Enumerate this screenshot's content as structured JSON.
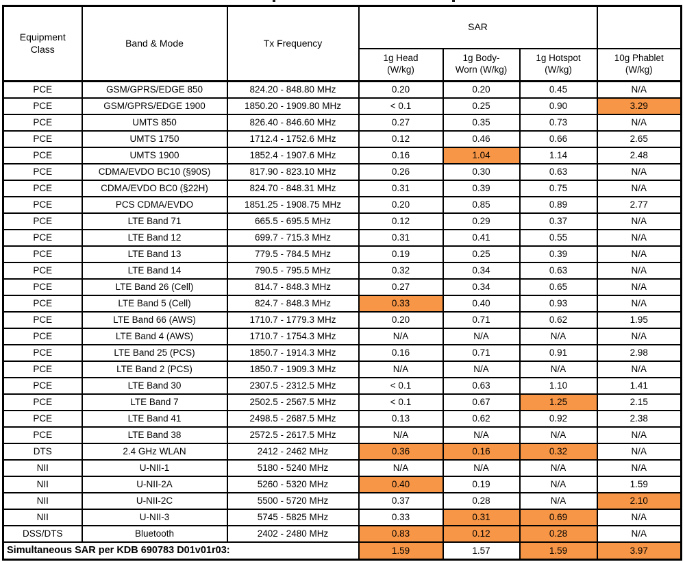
{
  "table": {
    "highlight_color": "#F79646",
    "headers": {
      "equipment_class": "Equipment\nClass",
      "band_mode": "Band & Mode",
      "tx_frequency": "Tx Frequency",
      "sar_group": "SAR",
      "sub_head": "1g Head\n(W/kg)",
      "sub_body_worn": "1g Body-\nWorn (W/kg)",
      "sub_hotspot": "1g Hotspot\n(W/kg)",
      "sub_phablet": "10g Phablet\n(W/kg)"
    },
    "rows": [
      {
        "equipment_class": "PCE",
        "band": "GSM/GPRS/EDGE 850",
        "frequency": "824.20 - 848.80 MHz",
        "values": [
          "0.20",
          "0.20",
          "0.45",
          "N/A"
        ],
        "highlight": [
          false,
          false,
          false,
          false
        ]
      },
      {
        "equipment_class": "PCE",
        "band": "GSM/GPRS/EDGE 1900",
        "frequency": "1850.20 - 1909.80 MHz",
        "values": [
          "< 0.1",
          "0.25",
          "0.90",
          "3.29"
        ],
        "highlight": [
          false,
          false,
          false,
          true
        ]
      },
      {
        "equipment_class": "PCE",
        "band": "UMTS 850",
        "frequency": "826.40 - 846.60 MHz",
        "values": [
          "0.27",
          "0.35",
          "0.73",
          "N/A"
        ],
        "highlight": [
          false,
          false,
          false,
          false
        ]
      },
      {
        "equipment_class": "PCE",
        "band": "UMTS 1750",
        "frequency": "1712.4 - 1752.6 MHz",
        "values": [
          "0.12",
          "0.46",
          "0.66",
          "2.65"
        ],
        "highlight": [
          false,
          false,
          false,
          false
        ]
      },
      {
        "equipment_class": "PCE",
        "band": "UMTS 1900",
        "frequency": "1852.4 - 1907.6 MHz",
        "values": [
          "0.16",
          "1.04",
          "1.14",
          "2.48"
        ],
        "highlight": [
          false,
          true,
          false,
          false
        ]
      },
      {
        "equipment_class": "PCE",
        "band": "CDMA/EVDO BC10 (§90S)",
        "frequency": "817.90 - 823.10 MHz",
        "values": [
          "0.26",
          "0.30",
          "0.63",
          "N/A"
        ],
        "highlight": [
          false,
          false,
          false,
          false
        ]
      },
      {
        "equipment_class": "PCE",
        "band": "CDMA/EVDO BC0 (§22H)",
        "frequency": "824.70 - 848.31 MHz",
        "values": [
          "0.31",
          "0.39",
          "0.75",
          "N/A"
        ],
        "highlight": [
          false,
          false,
          false,
          false
        ]
      },
      {
        "equipment_class": "PCE",
        "band": "PCS CDMA/EVDO",
        "frequency": "1851.25 - 1908.75 MHz",
        "values": [
          "0.20",
          "0.85",
          "0.89",
          "2.77"
        ],
        "highlight": [
          false,
          false,
          false,
          false
        ]
      },
      {
        "equipment_class": "PCE",
        "band": "LTE Band 71",
        "frequency": "665.5 - 695.5 MHz",
        "values": [
          "0.12",
          "0.29",
          "0.37",
          "N/A"
        ],
        "highlight": [
          false,
          false,
          false,
          false
        ]
      },
      {
        "equipment_class": "PCE",
        "band": "LTE Band 12",
        "frequency": "699.7 - 715.3 MHz",
        "values": [
          "0.31",
          "0.41",
          "0.55",
          "N/A"
        ],
        "highlight": [
          false,
          false,
          false,
          false
        ]
      },
      {
        "equipment_class": "PCE",
        "band": "LTE Band 13",
        "frequency": "779.5 - 784.5 MHz",
        "values": [
          "0.19",
          "0.25",
          "0.39",
          "N/A"
        ],
        "highlight": [
          false,
          false,
          false,
          false
        ]
      },
      {
        "equipment_class": "PCE",
        "band": "LTE Band 14",
        "frequency": "790.5 - 795.5 MHz",
        "values": [
          "0.32",
          "0.34",
          "0.63",
          "N/A"
        ],
        "highlight": [
          false,
          false,
          false,
          false
        ]
      },
      {
        "equipment_class": "PCE",
        "band": "LTE Band 26 (Cell)",
        "frequency": "814.7 - 848.3 MHz",
        "values": [
          "0.27",
          "0.34",
          "0.65",
          "N/A"
        ],
        "highlight": [
          false,
          false,
          false,
          false
        ]
      },
      {
        "equipment_class": "PCE",
        "band": "LTE Band 5 (Cell)",
        "frequency": "824.7 - 848.3 MHz",
        "values": [
          "0.33",
          "0.40",
          "0.93",
          "N/A"
        ],
        "highlight": [
          true,
          false,
          false,
          false
        ]
      },
      {
        "equipment_class": "PCE",
        "band": "LTE Band 66 (AWS)",
        "frequency": "1710.7 - 1779.3 MHz",
        "values": [
          "0.20",
          "0.71",
          "0.62",
          "1.95"
        ],
        "highlight": [
          false,
          false,
          false,
          false
        ]
      },
      {
        "equipment_class": "PCE",
        "band": "LTE Band 4 (AWS)",
        "frequency": "1710.7 - 1754.3 MHz",
        "values": [
          "N/A",
          "N/A",
          "N/A",
          "N/A"
        ],
        "highlight": [
          false,
          false,
          false,
          false
        ]
      },
      {
        "equipment_class": "PCE",
        "band": "LTE Band 25 (PCS)",
        "frequency": "1850.7 - 1914.3 MHz",
        "values": [
          "0.16",
          "0.71",
          "0.91",
          "2.98"
        ],
        "highlight": [
          false,
          false,
          false,
          false
        ]
      },
      {
        "equipment_class": "PCE",
        "band": "LTE Band 2 (PCS)",
        "frequency": "1850.7 - 1909.3 MHz",
        "values": [
          "N/A",
          "N/A",
          "N/A",
          "N/A"
        ],
        "highlight": [
          false,
          false,
          false,
          false
        ]
      },
      {
        "equipment_class": "PCE",
        "band": "LTE Band 30",
        "frequency": "2307.5 - 2312.5 MHz",
        "values": [
          "< 0.1",
          "0.63",
          "1.10",
          "1.41"
        ],
        "highlight": [
          false,
          false,
          false,
          false
        ]
      },
      {
        "equipment_class": "PCE",
        "band": "LTE Band 7",
        "frequency": "2502.5 - 2567.5 MHz",
        "values": [
          "< 0.1",
          "0.67",
          "1.25",
          "2.15"
        ],
        "highlight": [
          false,
          false,
          true,
          false
        ]
      },
      {
        "equipment_class": "PCE",
        "band": "LTE Band 41",
        "frequency": "2498.5 - 2687.5 MHz",
        "values": [
          "0.13",
          "0.62",
          "0.92",
          "2.38"
        ],
        "highlight": [
          false,
          false,
          false,
          false
        ]
      },
      {
        "equipment_class": "PCE",
        "band": "LTE Band 38",
        "frequency": "2572.5 - 2617.5 MHz",
        "values": [
          "N/A",
          "N/A",
          "N/A",
          "N/A"
        ],
        "highlight": [
          false,
          false,
          false,
          false
        ]
      },
      {
        "equipment_class": "DTS",
        "band": "2.4 GHz WLAN",
        "frequency": "2412 - 2462 MHz",
        "values": [
          "0.36",
          "0.16",
          "0.32",
          "N/A"
        ],
        "highlight": [
          true,
          true,
          true,
          false
        ]
      },
      {
        "equipment_class": "NII",
        "band": "U-NII-1",
        "frequency": "5180 - 5240 MHz",
        "values": [
          "N/A",
          "N/A",
          "N/A",
          "N/A"
        ],
        "highlight": [
          false,
          false,
          false,
          false
        ]
      },
      {
        "equipment_class": "NII",
        "band": "U-NII-2A",
        "frequency": "5260 - 5320 MHz",
        "values": [
          "0.40",
          "0.19",
          "N/A",
          "1.59"
        ],
        "highlight": [
          true,
          false,
          false,
          false
        ]
      },
      {
        "equipment_class": "NII",
        "band": "U-NII-2C",
        "frequency": "5500 - 5720 MHz",
        "values": [
          "0.37",
          "0.28",
          "N/A",
          "2.10"
        ],
        "highlight": [
          false,
          false,
          false,
          true
        ]
      },
      {
        "equipment_class": "NII",
        "band": "U-NII-3",
        "frequency": "5745 - 5825 MHz",
        "values": [
          "0.33",
          "0.31",
          "0.69",
          "N/A"
        ],
        "highlight": [
          false,
          true,
          true,
          false
        ]
      },
      {
        "equipment_class": "DSS/DTS",
        "band": "Bluetooth",
        "frequency": "2402 - 2480 MHz",
        "values": [
          "0.83",
          "0.12",
          "0.28",
          "N/A"
        ],
        "highlight": [
          true,
          true,
          true,
          false
        ]
      }
    ],
    "footer": {
      "label": "Simultaneous SAR per KDB 690783 D01v01r03:",
      "values": [
        "1.59",
        "1.57",
        "1.59",
        "3.97"
      ],
      "highlight": [
        true,
        false,
        true,
        true
      ]
    }
  }
}
